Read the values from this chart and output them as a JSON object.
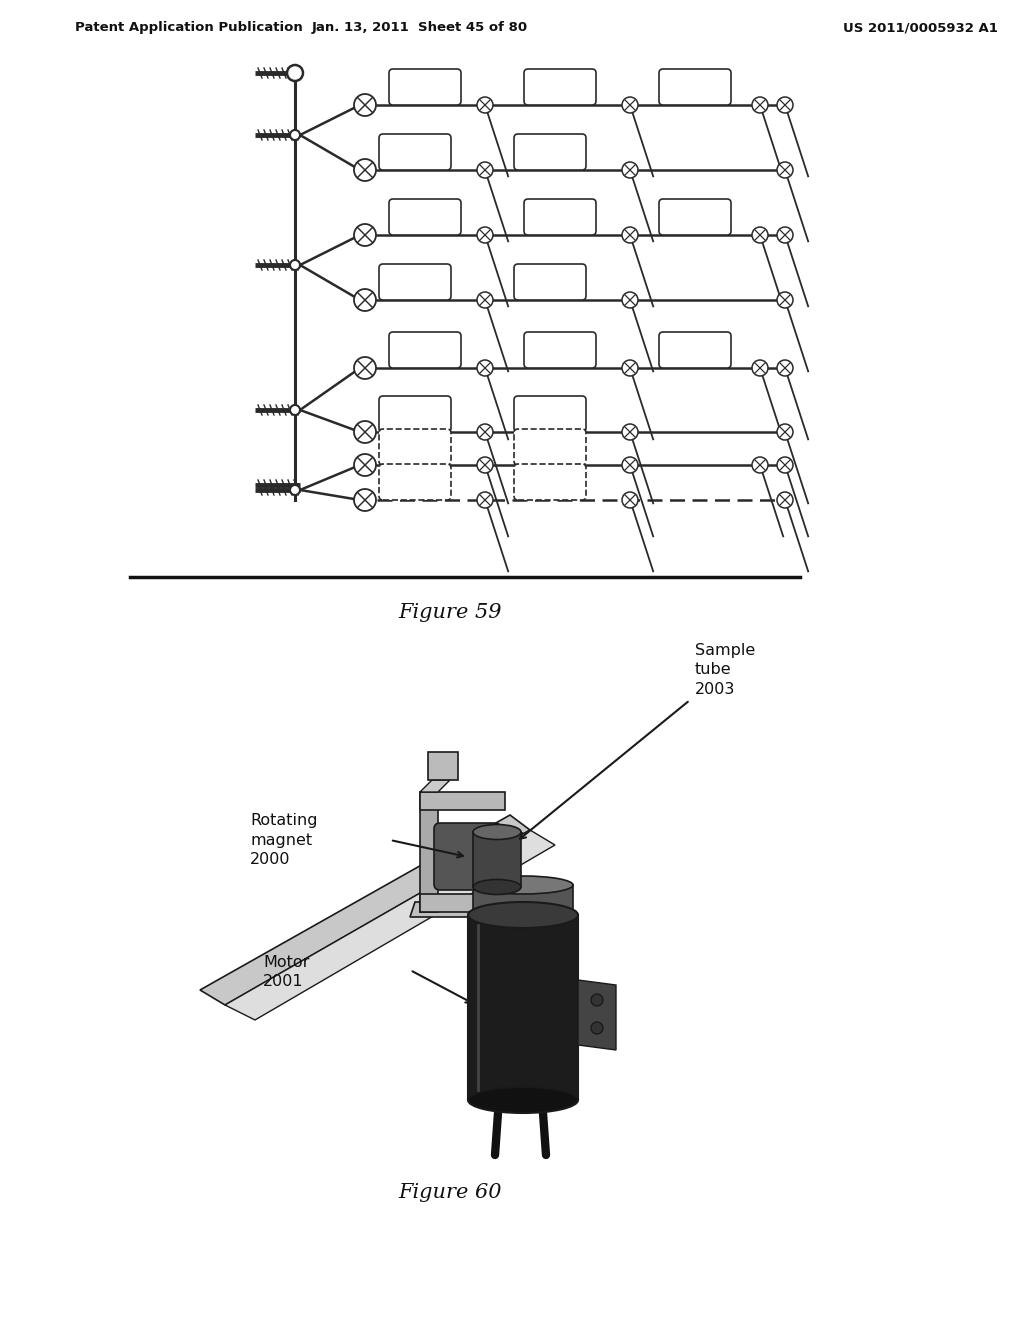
{
  "page_bg": "#ffffff",
  "header_left": "Patent Application Publication",
  "header_mid": "Jan. 13, 2011  Sheet 45 of 80",
  "header_right": "US 2011/0005932 A1",
  "fig59_caption": "Figure 59",
  "fig60_caption": "Figure 60",
  "lc": "#2a2a2a",
  "fig60_label_sample": "Sample\ntube\n2003",
  "fig60_label_magnet": "Rotating\nmagnet\n2000",
  "fig60_label_motor": "Motor\n2001"
}
